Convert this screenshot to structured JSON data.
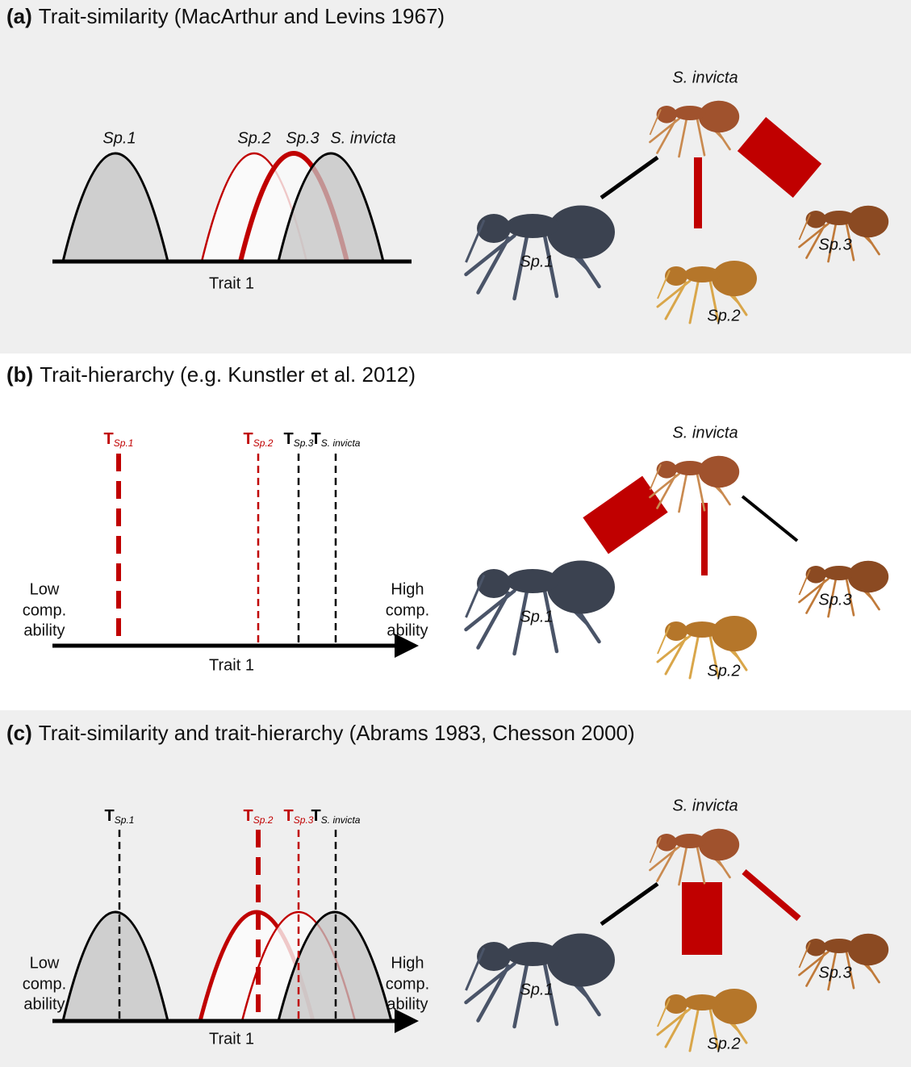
{
  "panels": [
    {
      "label": "(a)",
      "title": "Trait-similarity (MacArthur and Levins 1967)",
      "curve_labels": [
        "Sp.1",
        "Sp.2",
        "Sp.3",
        "S. invicta"
      ],
      "axis_label": "Trait 1",
      "network_labels": [
        "S. invicta",
        "Sp.1",
        "Sp.2",
        "Sp.3"
      ]
    },
    {
      "label": "(b)",
      "title": "Trait-hierarchy (e.g. Kunstler et al. 2012)",
      "trait_labels": [
        {
          "main": "T",
          "sub": "Sp.1"
        },
        {
          "main": "T",
          "sub": "Sp.2"
        },
        {
          "main": "T",
          "sub": "Sp.3"
        },
        {
          "main": "T",
          "sub": "S. invicta"
        }
      ],
      "low_label": [
        "Low",
        "comp.",
        "ability"
      ],
      "high_label": [
        "High",
        "comp.",
        "ability"
      ],
      "axis_label": "Trait 1",
      "network_labels": [
        "S. invicta",
        "Sp.1",
        "Sp.2",
        "Sp.3"
      ]
    },
    {
      "label": "(c)",
      "title": "Trait-similarity and trait-hierarchy (Abrams 1983, Chesson 2000)",
      "trait_labels": [
        {
          "main": "T",
          "sub": "Sp.1"
        },
        {
          "main": "T",
          "sub": "Sp.2"
        },
        {
          "main": "T",
          "sub": "Sp.3"
        },
        {
          "main": "T",
          "sub": "S. invicta"
        }
      ],
      "low_label": [
        "Low",
        "comp.",
        "ability"
      ],
      "high_label": [
        "High",
        "comp.",
        "ability"
      ],
      "axis_label": "Trait 1",
      "network_labels": [
        "S. invicta",
        "Sp.1",
        "Sp.2",
        "Sp.3"
      ]
    }
  ]
}
